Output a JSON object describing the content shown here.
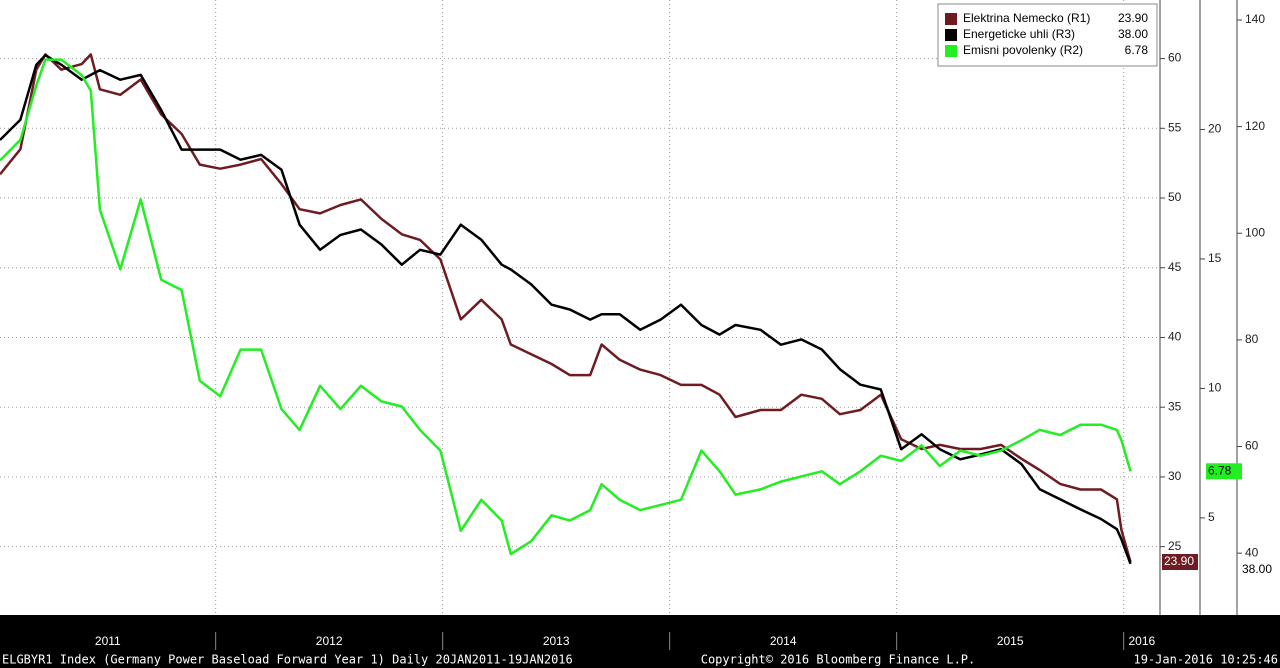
{
  "chart_data": {
    "type": "line",
    "x": [
      2011.05,
      2011.14,
      2011.21,
      2011.25,
      2011.32,
      2011.41,
      2011.45,
      2011.49,
      2011.58,
      2011.67,
      2011.76,
      2011.85,
      2011.93,
      2012.02,
      2012.11,
      2012.2,
      2012.29,
      2012.37,
      2012.46,
      2012.55,
      2012.64,
      2012.73,
      2012.82,
      2012.9,
      2012.99,
      2013.08,
      2013.17,
      2013.26,
      2013.3,
      2013.39,
      2013.48,
      2013.56,
      2013.65,
      2013.7,
      2013.78,
      2013.87,
      2013.96,
      2014.05,
      2014.14,
      2014.22,
      2014.29,
      2014.4,
      2014.49,
      2014.58,
      2014.67,
      2014.75,
      2014.84,
      2014.93,
      2015.02,
      2015.11,
      2015.19,
      2015.28,
      2015.37,
      2015.46,
      2015.55,
      2015.63,
      2015.72,
      2015.81,
      2015.9,
      2015.97,
      2015.99,
      2016.03
    ],
    "xlim": [
      2011.05,
      2016.16
    ],
    "xticks": [
      2011,
      2012,
      2013,
      2014,
      2015,
      2016
    ],
    "ylim": [
      20.1,
      64.2
    ],
    "yticks": [
      25,
      30,
      35,
      40,
      45,
      50,
      55,
      60
    ],
    "y2lim": [
      1.25,
      25
    ],
    "y2ticks": [
      5,
      10,
      15,
      20
    ],
    "y3lim": [
      28.4,
      143.75
    ],
    "y3ticks": [
      40,
      60,
      80,
      100,
      120,
      140
    ],
    "grid": true,
    "legend": "top-right",
    "series": [
      {
        "name": "Elektrina Nemecko (R1)",
        "color": "#6e1c22",
        "axis": "y",
        "last_label": "23.90",
        "values": [
          51.7,
          53.5,
          59.2,
          60.3,
          59.2,
          59.6,
          60.3,
          57.8,
          57.4,
          58.5,
          56.0,
          54.6,
          52.4,
          52.1,
          52.4,
          52.8,
          51.0,
          49.2,
          48.9,
          49.5,
          49.9,
          48.5,
          47.4,
          47.0,
          45.6,
          41.3,
          42.7,
          41.3,
          39.5,
          38.8,
          38.1,
          37.3,
          37.3,
          39.5,
          38.4,
          37.7,
          37.3,
          36.6,
          36.6,
          35.9,
          34.3,
          34.8,
          34.8,
          35.9,
          35.6,
          34.5,
          34.8,
          35.9,
          32.7,
          32.0,
          32.3,
          32.0,
          32.0,
          32.3,
          31.3,
          30.5,
          29.5,
          29.1,
          29.1,
          28.4,
          26.2,
          23.9
        ]
      },
      {
        "name": "Energeticke uhli (R3)",
        "color": "#000000",
        "axis": "y3",
        "last_label": "38.00",
        "values": [
          117.5,
          121.3,
          131.6,
          133.4,
          131.6,
          128.8,
          129.7,
          130.6,
          128.8,
          129.7,
          123.1,
          115.7,
          115.7,
          115.7,
          113.8,
          114.7,
          111.9,
          101.6,
          96.9,
          99.7,
          100.7,
          97.9,
          94.1,
          96.9,
          96.0,
          101.6,
          98.8,
          94.1,
          93.2,
          90.4,
          86.6,
          85.7,
          83.8,
          84.8,
          84.8,
          81.9,
          83.8,
          86.6,
          82.8,
          81.0,
          82.8,
          81.9,
          79.1,
          80.1,
          78.2,
          74.5,
          71.6,
          70.7,
          59.5,
          62.3,
          59.5,
          57.6,
          58.5,
          59.5,
          56.7,
          52.0,
          50.1,
          48.2,
          46.4,
          44.5,
          42.6,
          38.0
        ]
      },
      {
        "name": "Emisni povolenky (R2)",
        "color": "#22ee22",
        "axis": "y2",
        "last_label": "6.78",
        "values": [
          18.8,
          19.6,
          21.7,
          22.7,
          22.7,
          22.1,
          21.5,
          16.9,
          14.6,
          17.3,
          14.2,
          13.8,
          10.3,
          9.7,
          11.5,
          11.5,
          9.2,
          8.4,
          10.1,
          9.2,
          10.1,
          9.5,
          9.3,
          8.4,
          7.6,
          4.5,
          5.7,
          4.9,
          3.6,
          4.1,
          5.1,
          4.9,
          5.3,
          6.3,
          5.7,
          5.3,
          5.5,
          5.7,
          7.6,
          6.8,
          5.9,
          6.1,
          6.4,
          6.6,
          6.8,
          6.3,
          6.8,
          7.4,
          7.2,
          7.8,
          7.0,
          7.6,
          7.4,
          7.6,
          8.0,
          8.4,
          8.2,
          8.6,
          8.6,
          8.4,
          8.0,
          6.8
        ]
      }
    ],
    "footer": {
      "left": "ELGBYR1 Index (Germany Power Baseload Forward Year 1)  Daily 20JAN2011-19JAN2016",
      "center": "Copyright© 2016 Bloomberg Finance L.P.",
      "right": "19-Jan-2016 10:25:46"
    }
  }
}
